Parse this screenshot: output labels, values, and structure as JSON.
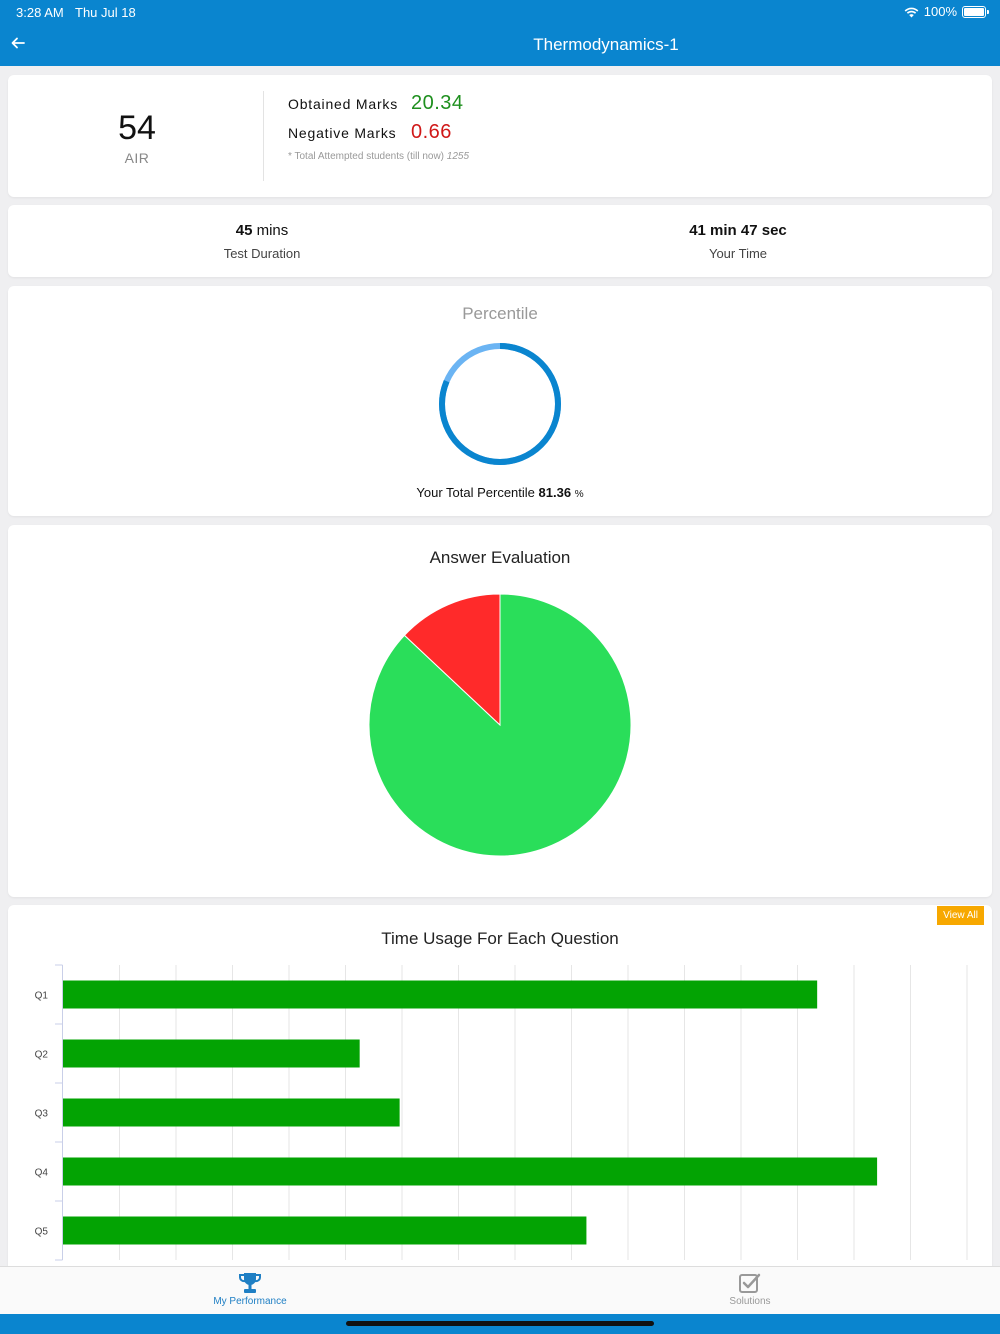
{
  "status_bar": {
    "time": "3:28 AM",
    "date": "Thu Jul 18",
    "battery": "100%",
    "wifi_icon": "wifi-icon",
    "battery_icon": "battery-icon"
  },
  "header": {
    "title": "Thermodynamics-1",
    "back_icon": "arrow-left-icon"
  },
  "score": {
    "rank": "54",
    "rank_label": "AIR",
    "obtained_label": "Obtained Marks",
    "obtained_value": "20.34",
    "negative_label": "Negative Marks",
    "negative_value": "0.66",
    "attempted_note": "* Total Attempted students (till now)",
    "attempted_count": "1255"
  },
  "duration": {
    "test_value": "45",
    "test_unit": "mins",
    "test_label": "Test Duration",
    "your_time": "41 min 47 sec",
    "your_label": "Your Time"
  },
  "percentile": {
    "title": "Percentile",
    "text": "Your Total Percentile",
    "value": "81.36",
    "unit": "%",
    "ring_fraction": 0.8136
  },
  "evaluation": {
    "title": "Answer Evaluation"
  },
  "time_usage": {
    "title": "Time Usage For Each Question",
    "view_all": "View All"
  },
  "chart_data": [
    {
      "type": "pie",
      "title": "Answer Evaluation",
      "values": [
        87,
        13
      ],
      "colors": [
        "#2ade5a",
        "#ff2a2a"
      ]
    },
    {
      "type": "bar",
      "orientation": "horizontal",
      "title": "Time Usage For Each Question",
      "categories": [
        "Q1",
        "Q2",
        "Q3",
        "Q4",
        "Q5"
      ],
      "values": [
        755,
        297,
        337,
        815,
        524
      ],
      "xlim": [
        0,
        905
      ],
      "grid": true,
      "color": "#03a303"
    }
  ],
  "tabs": [
    {
      "label": "My Performance",
      "icon": "trophy-icon",
      "active": true
    },
    {
      "label": "Solutions",
      "icon": "checkbox-icon",
      "active": false
    }
  ],
  "colors": {
    "brand": "#0a85cf",
    "ring_main": "#0a85cf",
    "ring_accent": "#6bb4f3"
  }
}
